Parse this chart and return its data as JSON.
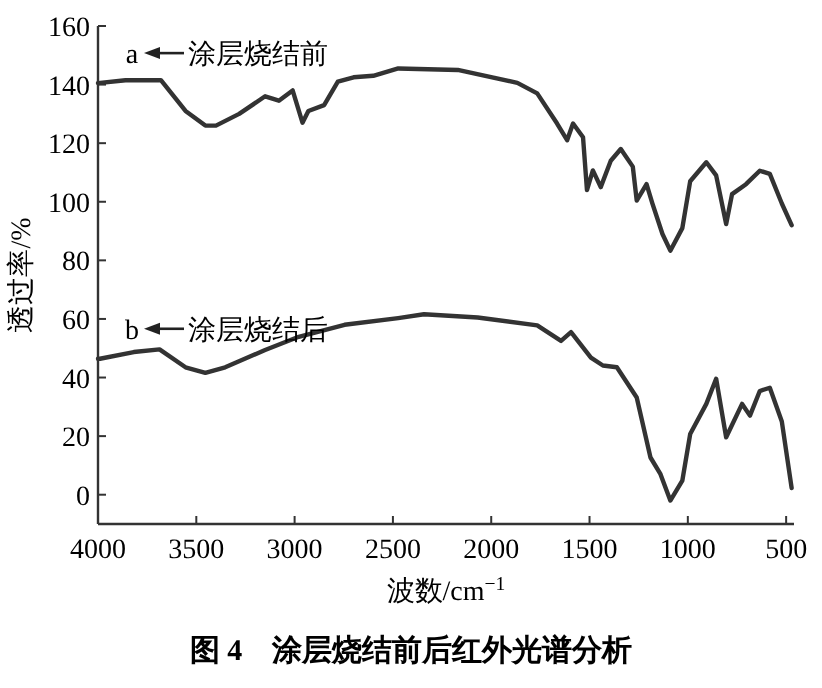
{
  "chart_data": {
    "type": "line",
    "title": "图 4　涂层烧结前后红外光谱分析",
    "xlabel": "波数/cm$^{−1}$",
    "ylabel": "透过率/%",
    "xlim": [
      4000,
      460
    ],
    "ylim": [
      -10,
      160
    ],
    "xticks": [
      4000,
      3500,
      3000,
      2500,
      2000,
      1500,
      1000,
      500
    ],
    "yticks": [
      0,
      20,
      40,
      60,
      80,
      100,
      120,
      140,
      160
    ],
    "grid": false,
    "marker": "none",
    "line_style": "solid",
    "annotations": [
      "涂层烧结前",
      "涂层烧结后"
    ],
    "series": [
      {
        "name": "a",
        "color": "#333333",
        "x": [
          4000,
          3860,
          3680,
          3555,
          3454,
          3400,
          3282,
          3150,
          3080,
          3010,
          2960,
          2930,
          2850,
          2780,
          2700,
          2600,
          2473,
          2170,
          1867,
          1766,
          1665,
          1614,
          1584,
          1533,
          1513,
          1483,
          1443,
          1392,
          1341,
          1280,
          1260,
          1210,
          1180,
          1129,
          1089,
          1028,
          988,
          906,
          856,
          805,
          775,
          704,
          634,
          583,
          522,
          472
        ],
        "values": [
          140.5,
          141.5,
          141.5,
          131,
          126,
          126,
          130,
          136,
          134.5,
          138,
          127,
          131,
          133,
          141,
          142.5,
          143,
          145.5,
          145,
          140.6,
          137,
          126.7,
          121,
          126.7,
          122,
          104,
          110.7,
          105,
          114,
          118,
          112,
          100.4,
          106,
          99.4,
          89,
          83.3,
          91,
          107,
          113.5,
          109,
          92.4,
          102.6,
          106,
          110.6,
          109.5,
          99.4,
          92
        ]
      },
      {
        "name": "b",
        "color": "#333333",
        "x": [
          4000,
          3990,
          3818,
          3687,
          3555,
          3454,
          3353,
          3150,
          2979,
          2746,
          2473,
          2342,
          2069,
          1766,
          1645,
          1594,
          1493,
          1432,
          1361,
          1260,
          1190,
          1139,
          1089,
          1028,
          988,
          906,
          856,
          805,
          724,
          684,
          634,
          583,
          522,
          472
        ],
        "values": [
          46.4,
          46.4,
          48.7,
          49.6,
          43.5,
          41.6,
          43.5,
          49.4,
          53.9,
          58,
          60.3,
          61.6,
          60.5,
          57.8,
          52.5,
          55.5,
          46.8,
          44.1,
          43.5,
          33.2,
          12.7,
          7,
          -2,
          4.8,
          20.7,
          31,
          39.6,
          19.6,
          31,
          27,
          35.4,
          36.5,
          25,
          2.3
        ]
      }
    ]
  }
}
